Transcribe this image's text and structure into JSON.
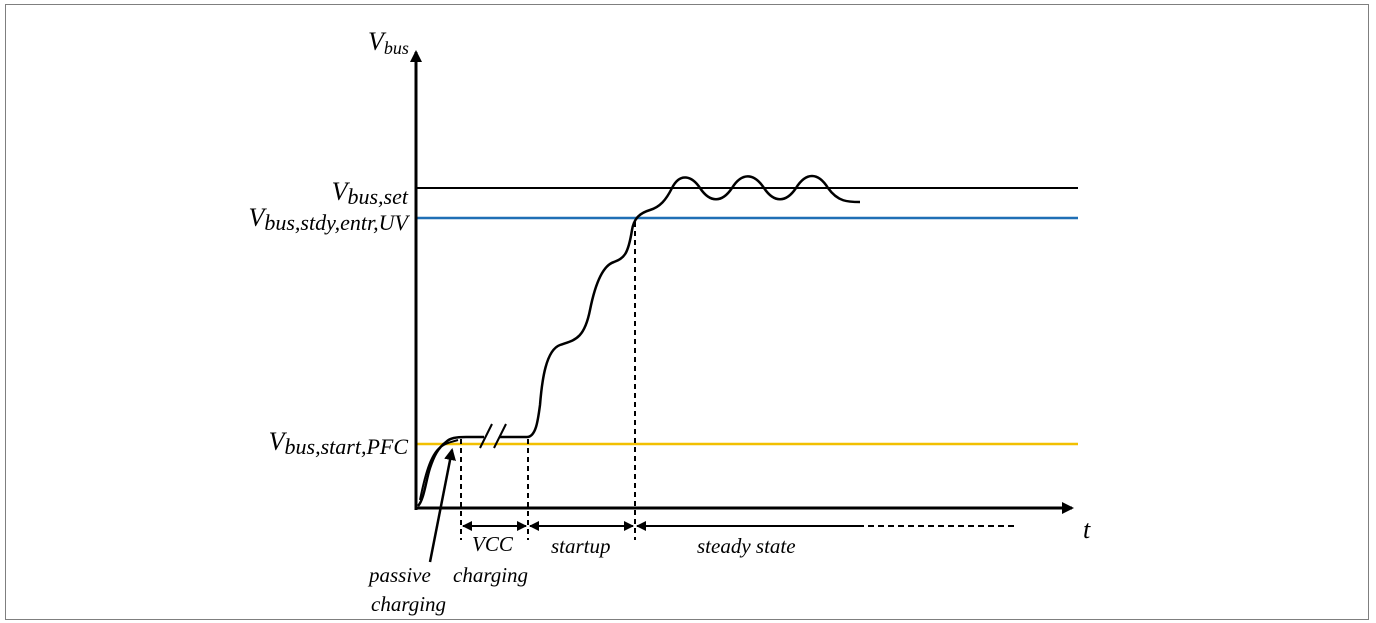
{
  "diagram": {
    "y_axis": {
      "symbol": "V",
      "subscript": "bus"
    },
    "x_axis": {
      "symbol": "t"
    },
    "levels": [
      {
        "id": "set",
        "symbol": "V",
        "subscript": "bus,set",
        "color": "#000000"
      },
      {
        "id": "stdy",
        "symbol": "V",
        "subscript": "bus,stdy,entr,UV",
        "color": "#1f6fb5"
      },
      {
        "id": "start",
        "symbol": "V",
        "subscript": "bus,start,PFC",
        "color": "#f2c000"
      }
    ],
    "phases": {
      "vcc_line1": "VCC",
      "vcc_line2": "charging",
      "startup": "startup",
      "steady": "steady state",
      "passive_line1": "passive",
      "passive_line2": "charging"
    }
  }
}
